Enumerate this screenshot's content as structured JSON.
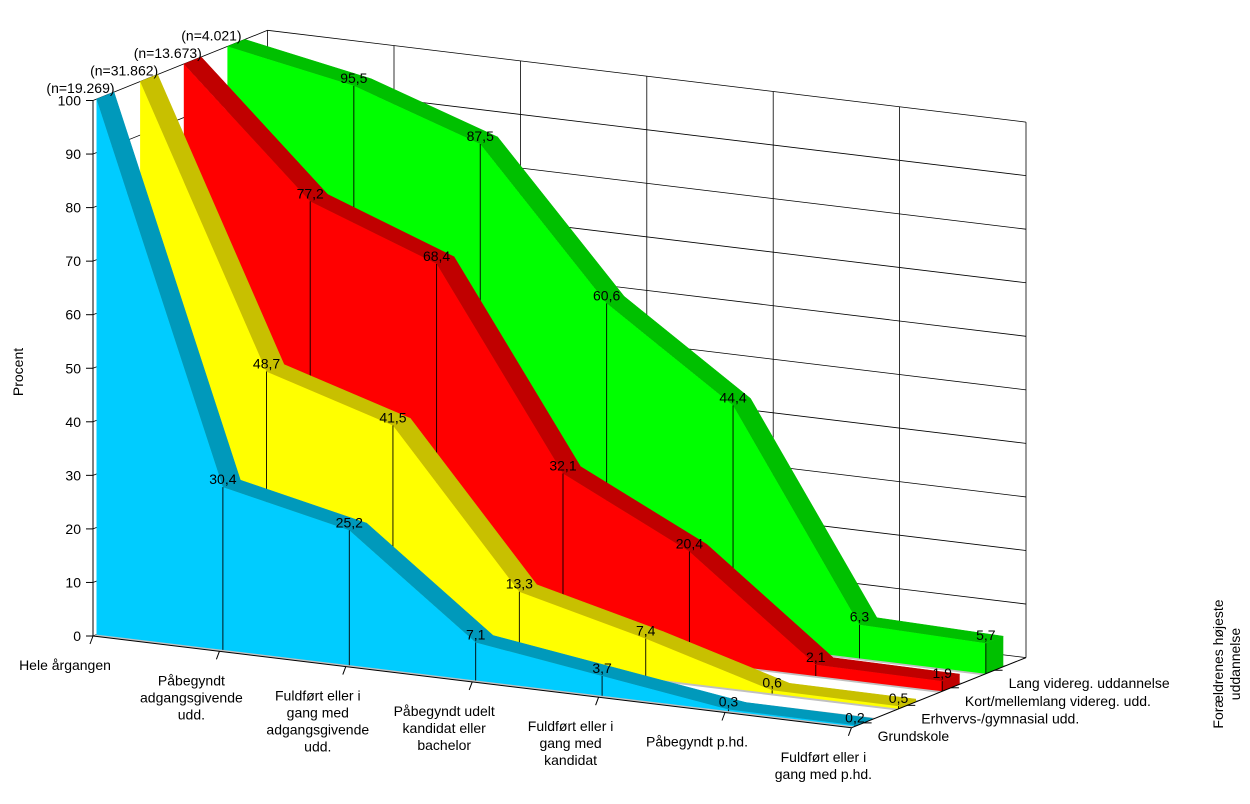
{
  "chart_data": {
    "type": "area",
    "style": "3d-ribbon",
    "ylabel": "Procent",
    "zlabel": "Forældrenes højeste uddannelse",
    "ylim": [
      0,
      100
    ],
    "yticks": [
      0,
      10,
      20,
      30,
      40,
      50,
      60,
      70,
      80,
      90,
      100
    ],
    "grid": true,
    "categories": [
      "Hele årgangen",
      "Påbegyndt adgangsgivende udd.",
      "Fuldført eller i gang med adgangsgivende udd.",
      "Påbegyndt udelt kandidat eller bachelor",
      "Fuldført eller i gang med kandidat",
      "Påbegyndt p.hd.",
      "Fuldført eller i gang med p.hd."
    ],
    "category_lines": [
      [
        "Hele årgangen"
      ],
      [
        "Påbegyndt",
        "adgangsgivende",
        "udd."
      ],
      [
        "Fuldført eller i",
        "gang med",
        "adgangsgivende",
        "udd."
      ],
      [
        "Påbegyndt udelt",
        "kandidat eller",
        "bachelor"
      ],
      [
        "Fuldført eller i",
        "gang med",
        "kandidat"
      ],
      [
        "Påbegyndt p.hd."
      ],
      [
        "Fuldført eller i",
        "gang med p.hd."
      ]
    ],
    "series": [
      {
        "name": "Grundskole",
        "n_label": "(n=19.269)",
        "value_labels": [
          "",
          "30,4",
          "25,2",
          "7,1",
          "3,7",
          "0,3",
          "0,2"
        ],
        "values": [
          100,
          30.4,
          25.2,
          7.1,
          3.7,
          0.3,
          0.2
        ],
        "color": "#00ccff",
        "top_color": "#0099bb"
      },
      {
        "name": "Erhvervs-/gymnasial udd.",
        "n_label": "(n=31.862)",
        "value_labels": [
          "",
          "48,7",
          "41,5",
          "13,3",
          "7,4",
          "0,6",
          "0,5"
        ],
        "values": [
          100,
          48.7,
          41.5,
          13.3,
          7.4,
          0.6,
          0.5
        ],
        "color": "#ffff00",
        "top_color": "#c8c000"
      },
      {
        "name": "Kort/mellemlang videreg. udd.",
        "n_label": "(n=13.673)",
        "value_labels": [
          "",
          "77,2",
          "68,4",
          "32,1",
          "20,4",
          "2,1",
          "1,9"
        ],
        "values": [
          100,
          77.2,
          68.4,
          32.1,
          20.4,
          2.1,
          1.9
        ],
        "color": "#ff0000",
        "top_color": "#c00000"
      },
      {
        "name": "Lang videreg. uddannelse",
        "n_label": "(n=4.021)",
        "value_labels": [
          "",
          "95,5",
          "87,5",
          "60,6",
          "44,4",
          "6,3",
          "5,7"
        ],
        "values": [
          100,
          95.5,
          87.5,
          60.6,
          44.4,
          6.3,
          5.7
        ],
        "color": "#00ff00",
        "top_color": "#00c000"
      }
    ],
    "colors": {
      "floor": "#c0c0c0",
      "grid": "#000000",
      "axis": "#000000"
    }
  }
}
